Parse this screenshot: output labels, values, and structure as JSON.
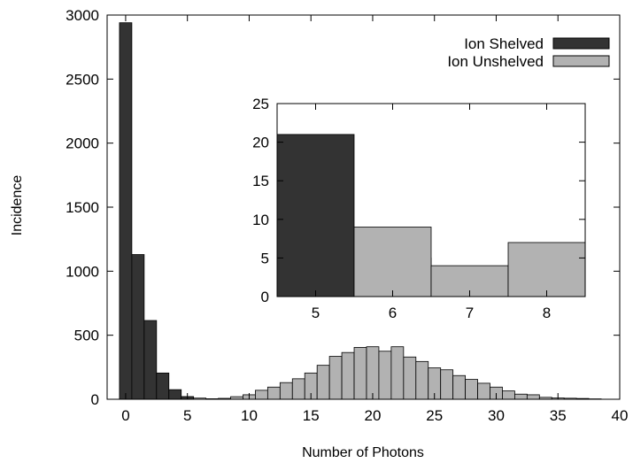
{
  "chart_data": [
    {
      "type": "bar",
      "xlabel": "Number of Photons",
      "ylabel": "Incidence",
      "xlim": [
        -1.5,
        40
      ],
      "ylim": [
        0,
        3000
      ],
      "xticks": [
        0,
        5,
        10,
        15,
        20,
        25,
        30,
        35,
        40
      ],
      "yticks": [
        0,
        500,
        1000,
        1500,
        2000,
        2500,
        3000
      ],
      "grid": false,
      "legend": "top-right",
      "series": [
        {
          "name": "Ion Shelved",
          "color": "#333333",
          "x": [
            0,
            1,
            2,
            3,
            4,
            5,
            6,
            7
          ],
          "values": [
            2940,
            1130,
            615,
            205,
            75,
            21,
            5,
            1
          ]
        },
        {
          "name": "Ion Unshelved",
          "color": "#b2b2b2",
          "x": [
            5,
            6,
            7,
            8,
            9,
            10,
            11,
            12,
            13,
            14,
            15,
            16,
            17,
            18,
            19,
            20,
            21,
            22,
            23,
            24,
            25,
            26,
            27,
            28,
            29,
            30,
            31,
            32,
            33,
            34,
            35,
            36,
            37,
            38
          ],
          "values": [
            0,
            9,
            4,
            7,
            20,
            35,
            70,
            95,
            130,
            160,
            205,
            265,
            335,
            365,
            405,
            410,
            375,
            410,
            330,
            295,
            245,
            230,
            185,
            155,
            125,
            95,
            65,
            40,
            35,
            15,
            10,
            8,
            6,
            3
          ]
        }
      ]
    },
    {
      "type": "bar",
      "xlim": [
        4.5,
        8.5
      ],
      "ylim": [
        0,
        25
      ],
      "xticks": [
        5,
        6,
        7,
        8
      ],
      "yticks": [
        0,
        5,
        10,
        15,
        20,
        25
      ],
      "grid": false,
      "series": [
        {
          "name": "Ion Shelved",
          "color": "#333333",
          "x": [
            5,
            6,
            7,
            8
          ],
          "values": [
            21,
            5,
            1,
            0
          ]
        },
        {
          "name": "Ion Unshelved",
          "color": "#b2b2b2",
          "x": [
            5,
            6,
            7,
            8
          ],
          "values": [
            0,
            9,
            4,
            7
          ]
        }
      ]
    }
  ]
}
